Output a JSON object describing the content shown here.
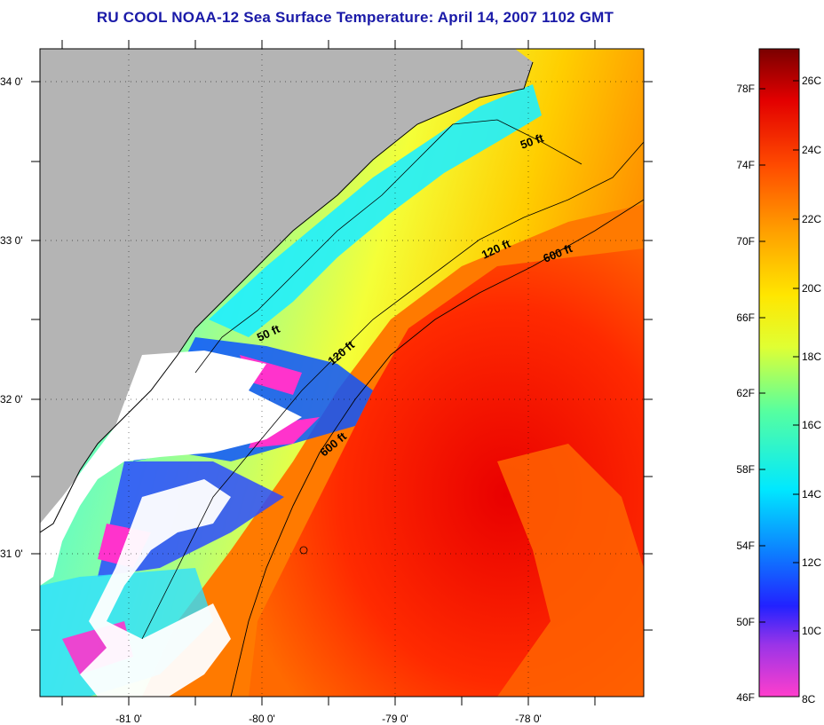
{
  "title": "RU COOL  NOAA-12  Sea Surface Temperature:  April 14, 2007 1102 GMT",
  "lat_labels": [
    "34 0'",
    "33 0'",
    "32 0'",
    "31 0'"
  ],
  "lon_labels": [
    "-81 0'",
    "-80 0'",
    "-79 0'",
    "-78 0'"
  ],
  "depth_contours": [
    "50 ft",
    "120 ft",
    "600 ft",
    "50 ft",
    "120 ft",
    "600 ft"
  ],
  "colorbar": {
    "fahrenheit": [
      "78F",
      "74F",
      "70F",
      "66F",
      "62F",
      "58F",
      "54F",
      "50F",
      "46F"
    ],
    "celsius": [
      "26C",
      "24C",
      "22C",
      "20C",
      "18C",
      "16C",
      "14C",
      "12C",
      "10C",
      "8C"
    ]
  },
  "colors": {
    "land": "#b4b4b4",
    "cloud": "#ffffff",
    "cold": "#ff33cc",
    "warm": "#e41b00",
    "title": "#1a1aa8"
  }
}
